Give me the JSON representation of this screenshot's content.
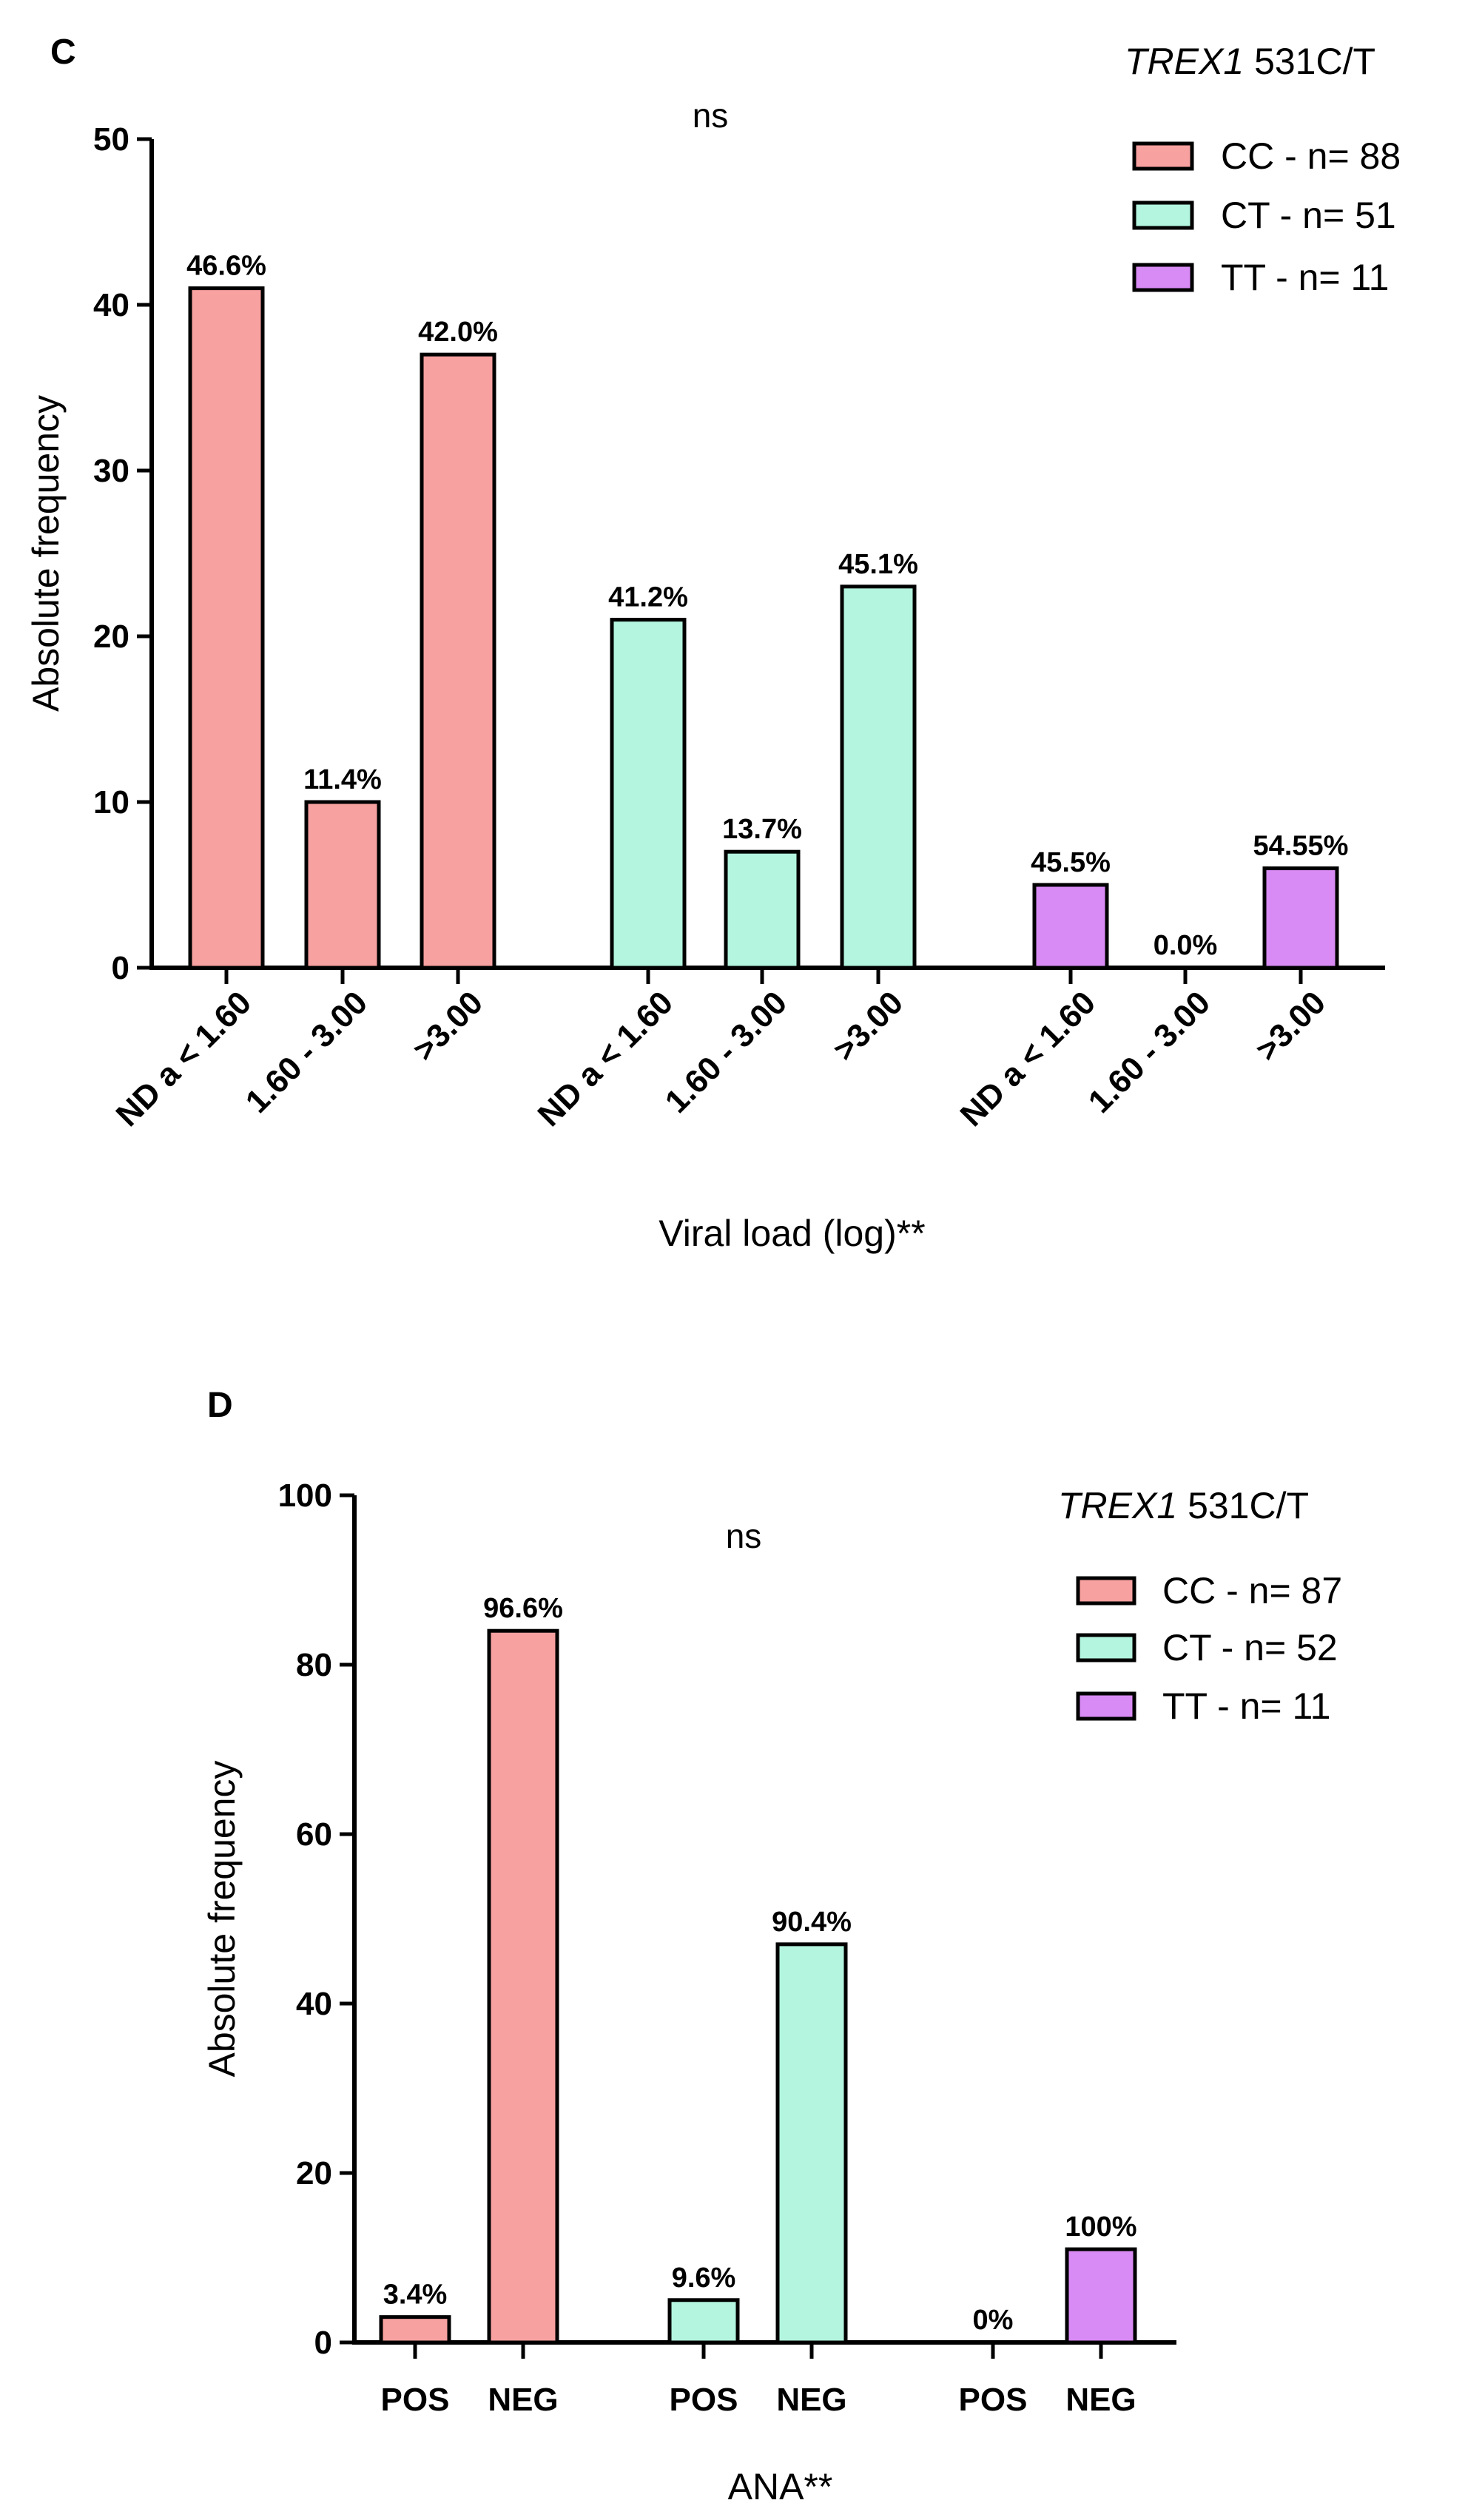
{
  "figure": {
    "panels": [
      {
        "letter": "C"
      },
      {
        "letter": "D"
      }
    ]
  },
  "chart_data": [
    {
      "type": "bar",
      "panel": "C",
      "title": "",
      "significance": "ns",
      "xlabel": "Viral load (log)**",
      "ylabel": "Absolute frequency",
      "ylim": [
        0,
        50
      ],
      "yticks": [
        0,
        10,
        20,
        30,
        40,
        50
      ],
      "groups": [
        "CC",
        "CT",
        "TT"
      ],
      "categories": [
        "ND a < 1.60",
        "1.60 - 3.00",
        ">3.00"
      ],
      "legend": {
        "title_italic": "TREX1",
        "title_rest": " 531C/T",
        "position": "top-right",
        "entries": [
          "CC - n= 88",
          "CT - n= 51",
          "TT - n= 11"
        ]
      },
      "series": [
        {
          "name": "CC",
          "color": "#F8A1A1",
          "values": [
            41,
            10,
            37
          ],
          "labels": [
            "46.6%",
            "11.4%",
            "42.0%"
          ]
        },
        {
          "name": "CT",
          "color": "#B3F5DF",
          "values": [
            21,
            7,
            23
          ],
          "labels": [
            "41.2%",
            "13.7%",
            "45.1%"
          ]
        },
        {
          "name": "TT",
          "color": "#D98BF5",
          "values": [
            5,
            0,
            6
          ],
          "labels": [
            "45.5%",
            "0.0%",
            "54.55%"
          ]
        }
      ]
    },
    {
      "type": "bar",
      "panel": "D",
      "title": "",
      "significance": "ns",
      "xlabel": "ANA**",
      "ylabel": "Absolute frequency",
      "ylim": [
        0,
        100
      ],
      "yticks": [
        0,
        20,
        40,
        60,
        80,
        100
      ],
      "groups": [
        "CC",
        "CT",
        "TT"
      ],
      "categories": [
        "POS",
        "NEG"
      ],
      "legend": {
        "title_italic": "TREX1",
        "title_rest": " 531C/T",
        "position": "top-right",
        "entries": [
          "CC - n= 87",
          "CT - n= 52",
          "TT - n= 11"
        ]
      },
      "series": [
        {
          "name": "CC",
          "color": "#F8A1A1",
          "values": [
            3,
            84
          ],
          "labels": [
            "3.4%",
            "96.6%"
          ]
        },
        {
          "name": "CT",
          "color": "#B3F5DF",
          "values": [
            5,
            47
          ],
          "labels": [
            "9.6%",
            "90.4%"
          ]
        },
        {
          "name": "TT",
          "color": "#D98BF5",
          "values": [
            0,
            11
          ],
          "labels": [
            "0%",
            "100%"
          ]
        }
      ]
    }
  ]
}
